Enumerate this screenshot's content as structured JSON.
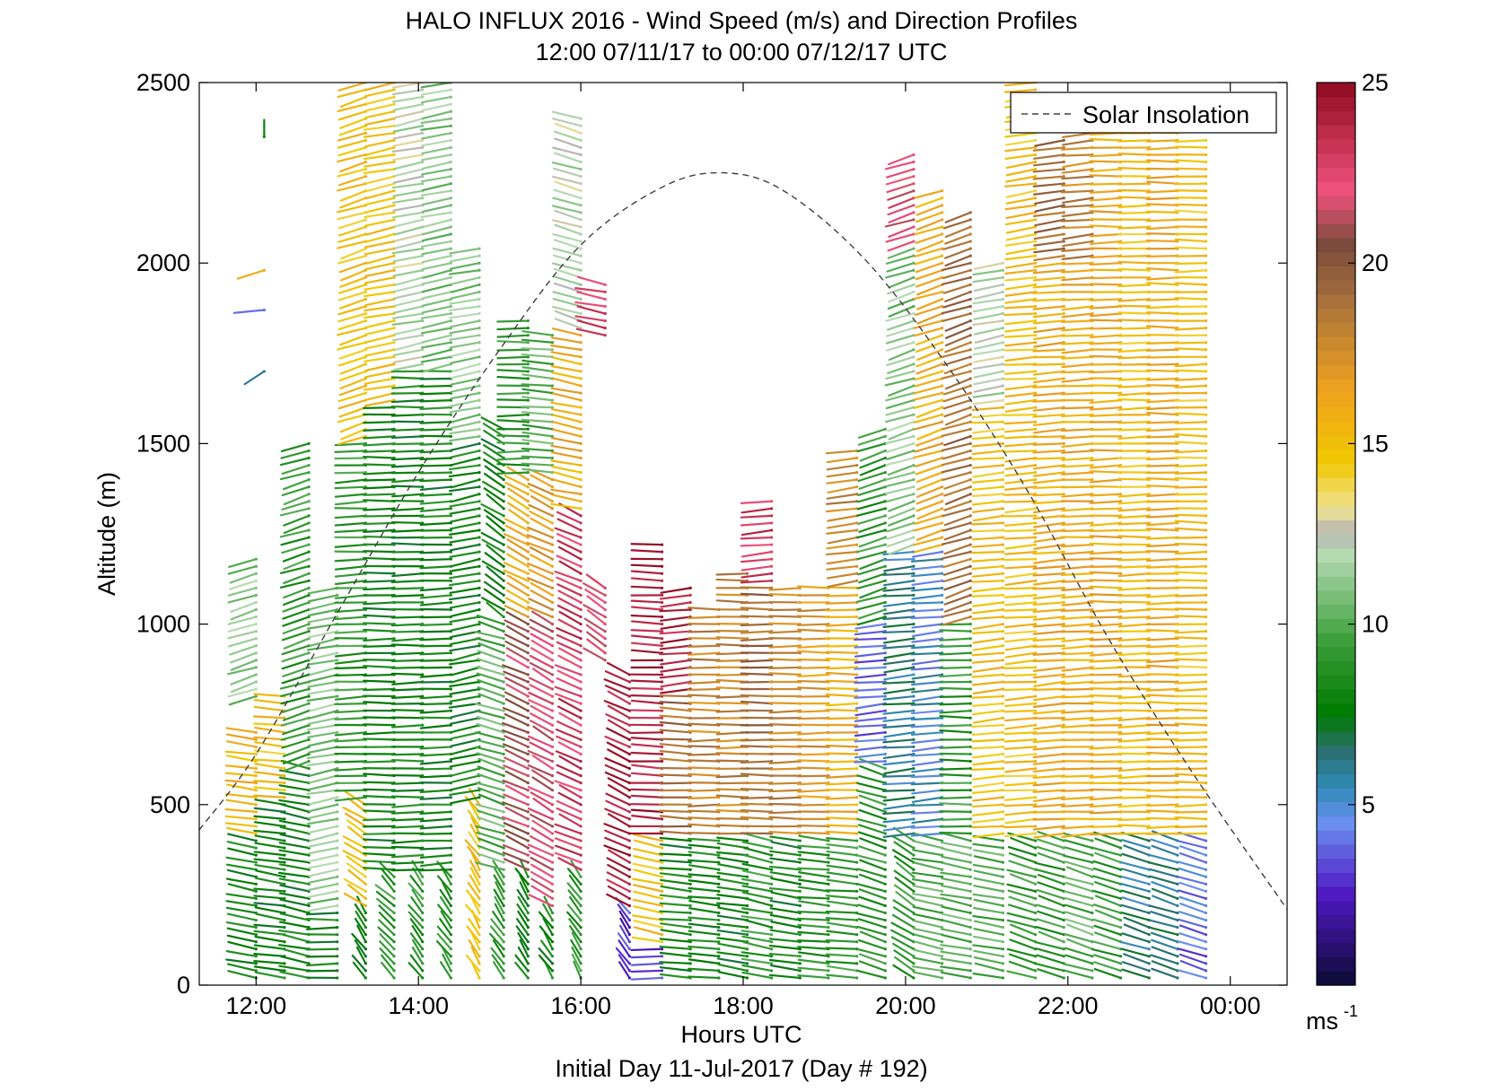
{
  "chart_data": {
    "type": "wind-barb-profile",
    "title": "HALO INFLUX 2016 - Wind Speed (m/s) and Direction Profiles",
    "subtitle": "12:00 07/11/17 to 00:00 07/12/17  UTC",
    "xlabel": "Hours UTC",
    "xlabel2": "Initial Day 11-Jul-2017 (Day # 192)",
    "ylabel": "Altitude (m)",
    "xlim": [
      11.3,
      24.7
    ],
    "ylim": [
      0,
      2500
    ],
    "x_ticks": [
      12,
      14,
      16,
      18,
      20,
      22,
      24
    ],
    "x_tick_labels": [
      "12:00",
      "14:00",
      "16:00",
      "18:00",
      "20:00",
      "22:00",
      "00:00"
    ],
    "y_ticks": [
      0,
      500,
      1000,
      1500,
      2000,
      2500
    ],
    "y_tick_labels": [
      "0",
      "500",
      "1000",
      "1500",
      "2000",
      "2500"
    ],
    "legend": {
      "label": "Solar Insolation",
      "position": "top-right"
    },
    "colorbar": {
      "min": 0,
      "max": 25,
      "ticks": [
        5,
        10,
        15,
        20,
        25
      ],
      "tick_labels": [
        "5",
        "10",
        "15",
        "20",
        "25"
      ],
      "unit_label": "ms",
      "unit_exponent": "-1",
      "stops": [
        {
          "v": 0,
          "c": "#0b0b33"
        },
        {
          "v": 2.5,
          "c": "#4f18c2"
        },
        {
          "v": 4.5,
          "c": "#6a8ef0"
        },
        {
          "v": 5.5,
          "c": "#2f8ab4"
        },
        {
          "v": 6.5,
          "c": "#2b6f6f"
        },
        {
          "v": 7.5,
          "c": "#007a00"
        },
        {
          "v": 9.5,
          "c": "#3a9e3a"
        },
        {
          "v": 12,
          "c": "#b8dcb4"
        },
        {
          "v": 12.5,
          "c": "#b4b4b4"
        },
        {
          "v": 13.2,
          "c": "#efe294"
        },
        {
          "v": 14.5,
          "c": "#f0c800"
        },
        {
          "v": 16.5,
          "c": "#efa21e"
        },
        {
          "v": 19,
          "c": "#a6703c"
        },
        {
          "v": 20.5,
          "c": "#7a4a3a"
        },
        {
          "v": 22,
          "c": "#f0527e"
        },
        {
          "v": 25,
          "c": "#8e0a1e"
        }
      ]
    },
    "solar_insolation_curve": {
      "style": "dashed",
      "color": "#404040",
      "x": [
        11.3,
        12.0,
        13.0,
        14.0,
        15.0,
        16.0,
        17.0,
        17.75,
        18.5,
        19.5,
        20.5,
        21.5,
        22.5,
        23.5,
        24.7
      ],
      "y": [
        430,
        640,
        1030,
        1420,
        1760,
        2050,
        2210,
        2250,
        2200,
        2010,
        1720,
        1370,
        960,
        600,
        210
      ]
    },
    "profiles": [
      {
        "t": 12.0,
        "zmin": 20,
        "zmax": 1180,
        "segs": [
          [
            0,
            400,
            200,
            8,
            250
          ],
          [
            400,
            700,
            800,
            15.5,
            255
          ],
          [
            800,
            1180,
            0,
            11,
            300
          ]
        ]
      },
      {
        "t": 12.1,
        "extra": [
          [
            1980,
            16,
            300
          ],
          [
            1870,
            4,
            280
          ],
          [
            1700,
            6,
            320
          ],
          [
            2350,
            8,
            180
          ]
        ]
      },
      {
        "t": 12.35,
        "zmin": 20,
        "zmax": 800,
        "segs": [
          [
            0,
            500,
            0,
            8,
            255
          ],
          [
            500,
            800,
            0,
            15,
            260
          ]
        ]
      },
      {
        "t": 12.65,
        "zmin": 20,
        "zmax": 1500,
        "segs": [
          [
            0,
            600,
            0,
            8,
            250
          ],
          [
            600,
            1500,
            0,
            9,
            300
          ]
        ]
      },
      {
        "t": 13.0,
        "zmin": 20,
        "zmax": 1100,
        "segs": [
          [
            0,
            200,
            0,
            8,
            270
          ],
          [
            200,
            1100,
            0,
            11,
            290
          ]
        ]
      },
      {
        "t": 13.35,
        "zmin": 20,
        "zmax": 2500,
        "segs": [
          [
            0,
            200,
            0,
            8,
            200
          ],
          [
            200,
            500,
            0,
            15,
            220
          ],
          [
            500,
            1500,
            0,
            9,
            275
          ],
          [
            1500,
            2500,
            0,
            15,
            300
          ]
        ]
      },
      {
        "t": 13.7,
        "zmin": 20,
        "zmax": 2500,
        "segs": [
          [
            0,
            300,
            0,
            9,
            210
          ],
          [
            300,
            1600,
            0,
            8,
            270
          ],
          [
            1600,
            2500,
            0,
            15,
            290
          ]
        ]
      },
      {
        "t": 14.05,
        "zmin": 20,
        "zmax": 2500,
        "segs": [
          [
            0,
            300,
            0,
            9,
            200
          ],
          [
            300,
            1700,
            0,
            8,
            272
          ],
          [
            1700,
            2500,
            0,
            12,
            290
          ]
        ]
      },
      {
        "t": 14.4,
        "zmin": 20,
        "zmax": 2500,
        "segs": [
          [
            0,
            300,
            0,
            9,
            200
          ],
          [
            300,
            1700,
            0,
            8,
            275
          ],
          [
            1700,
            2500,
            0,
            11,
            290
          ]
        ]
      },
      {
        "t": 14.75,
        "zmin": 20,
        "zmax": 2050,
        "segs": [
          [
            0,
            500,
            0,
            15,
            200
          ],
          [
            500,
            1500,
            0,
            8,
            290
          ],
          [
            1500,
            2050,
            0,
            11,
            290
          ]
        ]
      },
      {
        "t": 15.05,
        "zmin": 20,
        "zmax": 1550,
        "segs": [
          [
            0,
            300,
            0,
            9,
            200
          ],
          [
            300,
            1000,
            0,
            10,
            240
          ],
          [
            1000,
            1550,
            0,
            8,
            220
          ]
        ]
      },
      {
        "t": 15.35,
        "zmin": 20,
        "zmax": 1850,
        "segs": [
          [
            0,
            300,
            0,
            8,
            200
          ],
          [
            300,
            1000,
            0,
            21,
            230
          ],
          [
            1000,
            1400,
            0,
            16,
            225
          ],
          [
            1400,
            1850,
            0,
            9,
            270
          ]
        ]
      },
      {
        "t": 15.65,
        "zmin": 20,
        "zmax": 1800,
        "segs": [
          [
            0,
            200,
            0,
            8,
            200
          ],
          [
            200,
            1000,
            0,
            22,
            225
          ],
          [
            1000,
            1400,
            0,
            17,
            230
          ],
          [
            1400,
            1800,
            0,
            10,
            260
          ]
        ]
      },
      {
        "t": 16.0,
        "zmin": 20,
        "zmax": 2400,
        "segs": [
          [
            0,
            300,
            0,
            9,
            200
          ],
          [
            300,
            1300,
            0,
            23,
            230
          ],
          [
            1300,
            1800,
            0,
            16,
            250
          ],
          [
            1800,
            2400,
            0,
            12,
            240
          ]
        ]
      },
      {
        "t": 16.3,
        "zmin": 900,
        "zmax": 1950,
        "segs": [
          [
            900,
            1100,
            0,
            22,
            220
          ],
          [
            1800,
            1950,
            0,
            23,
            250
          ]
        ]
      },
      {
        "t": 16.6,
        "zmin": 20,
        "zmax": 870,
        "segs": [
          [
            0,
            200,
            0,
            3,
            200
          ],
          [
            200,
            870,
            0,
            24,
            230
          ]
        ]
      },
      {
        "t": 17.0,
        "zmin": 20,
        "zmax": 1220,
        "segs": [
          [
            0,
            100,
            0,
            3,
            270
          ],
          [
            100,
            400,
            0,
            15,
            250
          ],
          [
            400,
            1220,
            0,
            24,
            265
          ]
        ]
      },
      {
        "t": 17.35,
        "zmin": 20,
        "zmax": 1100,
        "segs": [
          [
            0,
            400,
            0,
            8,
            260
          ],
          [
            400,
            800,
            0,
            19,
            265
          ],
          [
            800,
            1100,
            0,
            24,
            280
          ]
        ]
      },
      {
        "t": 17.7,
        "zmin": 20,
        "zmax": 1050,
        "segs": [
          [
            0,
            400,
            0,
            8,
            260
          ],
          [
            400,
            1050,
            0,
            18,
            270
          ]
        ]
      },
      {
        "t": 18.05,
        "zmin": 20,
        "zmax": 1150,
        "segs": [
          [
            0,
            400,
            0,
            8,
            255
          ],
          [
            400,
            1150,
            0,
            18,
            270
          ]
        ]
      },
      {
        "t": 18.35,
        "zmin": 20,
        "zmax": 1350,
        "segs": [
          [
            0,
            400,
            0,
            9,
            250
          ],
          [
            400,
            1100,
            0,
            19,
            270
          ],
          [
            1100,
            1350,
            0,
            23,
            280
          ]
        ]
      },
      {
        "t": 18.7,
        "zmin": 20,
        "zmax": 1100,
        "segs": [
          [
            0,
            400,
            0,
            8,
            255
          ],
          [
            400,
            1100,
            0,
            18,
            270
          ]
        ]
      },
      {
        "t": 19.05,
        "zmin": 20,
        "zmax": 1100,
        "segs": [
          [
            0,
            400,
            0,
            9,
            260
          ],
          [
            400,
            1100,
            0,
            17,
            270
          ]
        ]
      },
      {
        "t": 19.4,
        "zmin": 20,
        "zmax": 1480,
        "segs": [
          [
            0,
            400,
            0,
            9,
            260
          ],
          [
            400,
            1100,
            0,
            16,
            270
          ],
          [
            1100,
            1480,
            0,
            18,
            285
          ]
        ]
      },
      {
        "t": 19.75,
        "zmin": 20,
        "zmax": 1550,
        "segs": [
          [
            0,
            600,
            0,
            9,
            240
          ],
          [
            600,
            1000,
            0,
            4,
            280
          ],
          [
            1000,
            1550,
            0,
            9,
            300
          ]
        ]
      },
      {
        "t": 20.1,
        "zmin": 20,
        "zmax": 2300,
        "segs": [
          [
            0,
            400,
            0,
            9,
            220
          ],
          [
            400,
            1200,
            0,
            6,
            280
          ],
          [
            1200,
            2050,
            0,
            11,
            300
          ],
          [
            2050,
            2300,
            0,
            22,
            300
          ]
        ]
      },
      {
        "t": 20.45,
        "zmin": 20,
        "zmax": 2200,
        "segs": [
          [
            0,
            400,
            0,
            10,
            250
          ],
          [
            400,
            1200,
            0,
            5,
            280
          ],
          [
            1200,
            2200,
            0,
            16,
            300
          ]
        ]
      },
      {
        "t": 20.8,
        "zmin": 20,
        "zmax": 2150,
        "segs": [
          [
            0,
            400,
            0,
            10,
            250
          ],
          [
            400,
            1000,
            0,
            9,
            270
          ],
          [
            1000,
            2150,
            0,
            19,
            300
          ]
        ]
      },
      {
        "t": 21.2,
        "zmin": 20,
        "zmax": 2000,
        "segs": [
          [
            0,
            400,
            0,
            10,
            250
          ],
          [
            400,
            1600,
            0,
            15,
            280
          ],
          [
            1600,
            2000,
            0,
            12,
            290
          ]
        ]
      },
      {
        "t": 21.6,
        "zmin": 20,
        "zmax": 2500,
        "segs": [
          [
            0,
            400,
            0,
            9,
            240
          ],
          [
            400,
            1900,
            0,
            15,
            278
          ],
          [
            1900,
            2500,
            0,
            15,
            285
          ]
        ]
      },
      {
        "t": 21.95,
        "zmin": 20,
        "zmax": 2350,
        "segs": [
          [
            0,
            400,
            0,
            9,
            240
          ],
          [
            400,
            2000,
            0,
            16,
            278
          ],
          [
            2000,
            2350,
            0,
            19,
            285
          ]
        ]
      },
      {
        "t": 22.3,
        "zmin": 20,
        "zmax": 2400,
        "segs": [
          [
            0,
            400,
            0,
            10,
            240
          ],
          [
            400,
            2000,
            0,
            16,
            275
          ],
          [
            2000,
            2400,
            0,
            18,
            280
          ]
        ]
      },
      {
        "t": 22.65,
        "zmin": 20,
        "zmax": 2400,
        "segs": [
          [
            0,
            400,
            0,
            9,
            240
          ],
          [
            400,
            2400,
            0,
            16,
            272
          ]
        ]
      },
      {
        "t": 23.0,
        "zmin": 20,
        "zmax": 2400,
        "segs": [
          [
            0,
            400,
            0,
            6,
            240
          ],
          [
            400,
            2400,
            0,
            15,
            272
          ]
        ]
      },
      {
        "t": 23.35,
        "zmin": 20,
        "zmax": 2400,
        "segs": [
          [
            0,
            400,
            0,
            6,
            240
          ],
          [
            400,
            2400,
            0,
            16,
            270
          ]
        ]
      },
      {
        "t": 23.7,
        "zmin": 20,
        "zmax": 2350,
        "segs": [
          [
            0,
            400,
            0,
            4,
            240
          ],
          [
            400,
            2350,
            0,
            15,
            270
          ]
        ]
      }
    ]
  }
}
